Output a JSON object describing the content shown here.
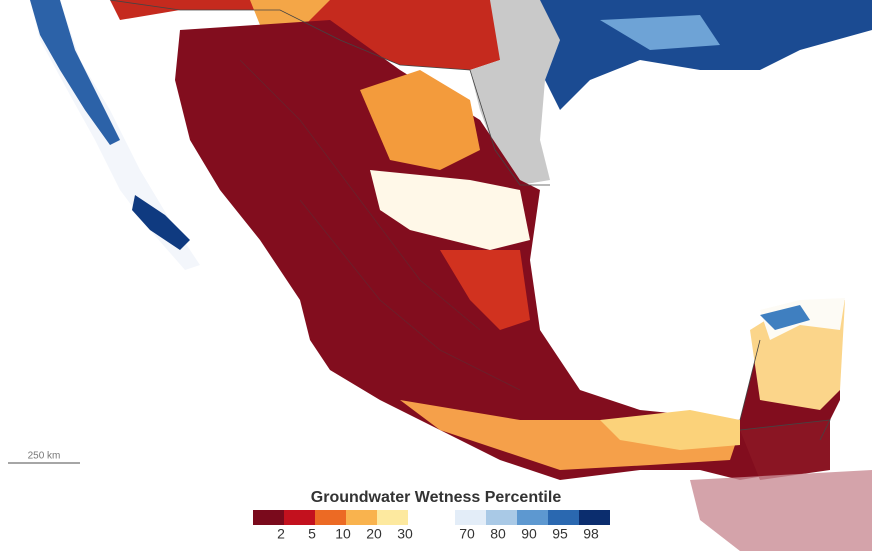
{
  "map": {
    "scale_bar": "250 km",
    "legend": {
      "title": "Groundwater Wetness Percentile",
      "dry_colors": [
        "#7a0a1c",
        "#c3111e",
        "#ec6a24",
        "#f9b34e",
        "#fde99f"
      ],
      "wet_colors": [
        "#e3edf8",
        "#a9c9e6",
        "#5d98d0",
        "#2a68b0",
        "#0b2d6e"
      ],
      "dry_ticks": [
        2,
        5,
        10,
        20,
        30
      ],
      "wet_ticks": [
        70,
        80,
        90,
        95,
        98
      ]
    }
  }
}
